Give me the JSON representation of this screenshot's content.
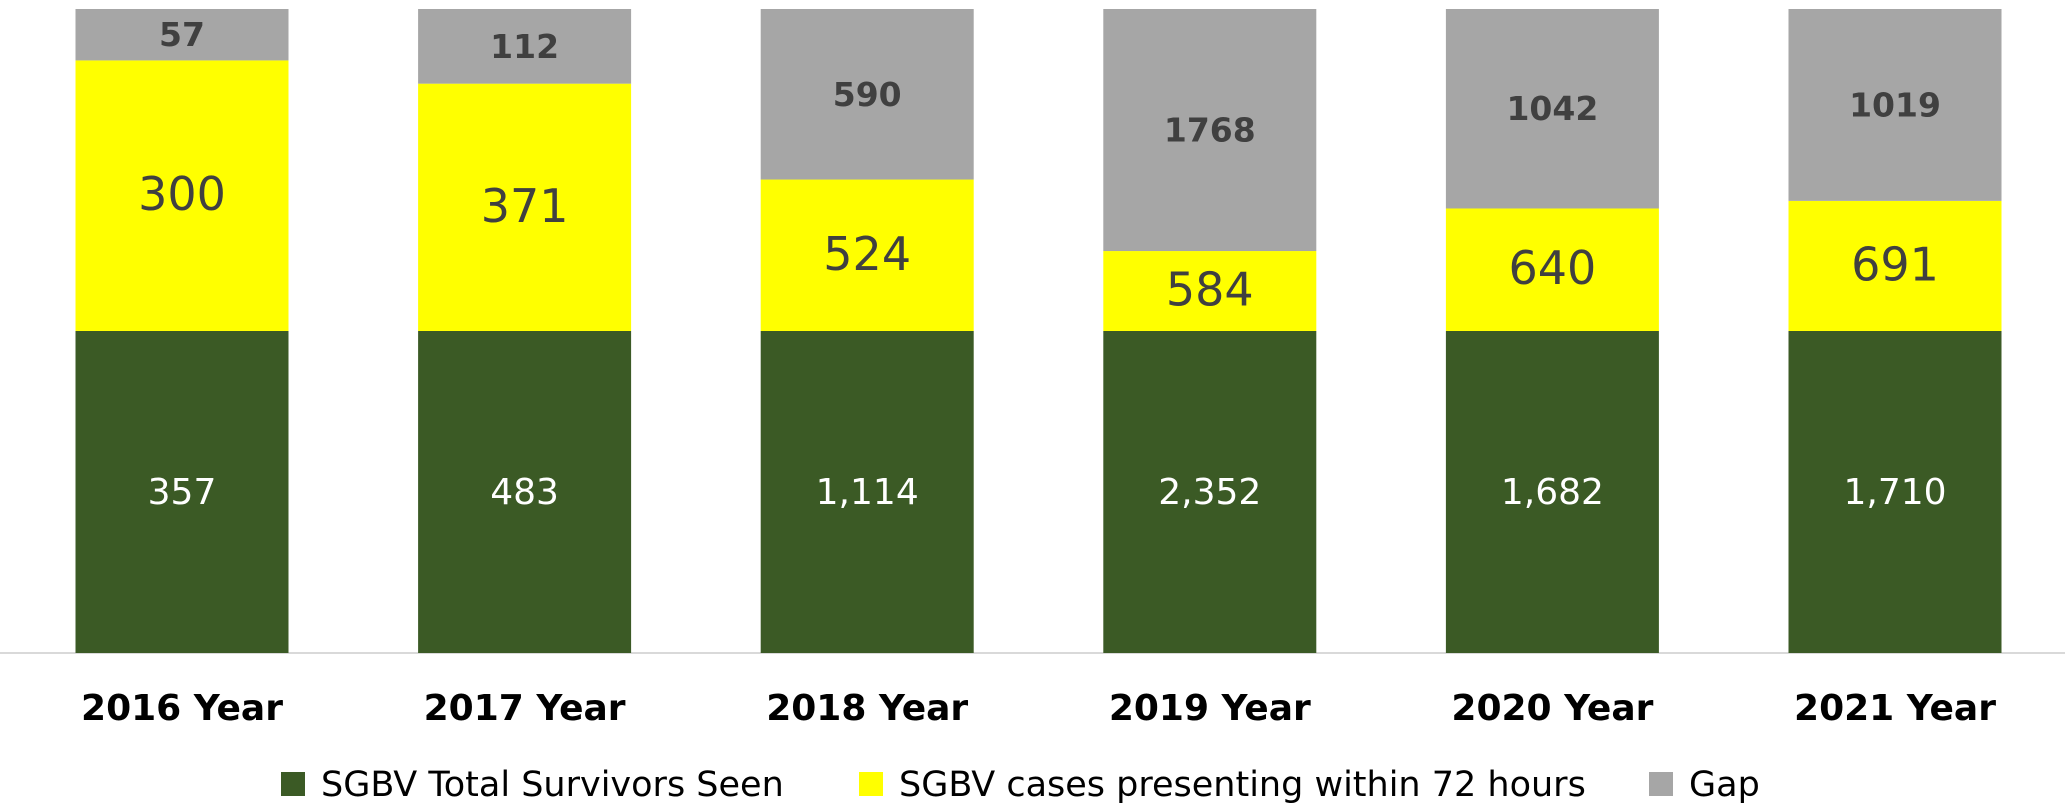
{
  "chart_data": {
    "type": "bar",
    "stacking": "percent",
    "categories": [
      "2016 Year",
      "2017 Year",
      "2018 Year",
      "2019 Year",
      "2020 Year",
      "2021 Year"
    ],
    "series": [
      {
        "name": "SGBV Total Survivors Seen",
        "color": "#3b5a25",
        "values": [
          357,
          483,
          1114,
          2352,
          1682,
          1710
        ],
        "value_labels": [
          "357",
          "483",
          "1,114",
          "2,352",
          "1,682",
          "1,710"
        ]
      },
      {
        "name": "SGBV cases presenting within 72 hours",
        "color": "#ffff00",
        "values": [
          300,
          371,
          524,
          584,
          640,
          691
        ]
      },
      {
        "name": "Gap",
        "color": "#a6a6a6",
        "values": [
          57,
          112,
          590,
          1768,
          1042,
          1019
        ]
      }
    ],
    "legend": "bottom"
  }
}
